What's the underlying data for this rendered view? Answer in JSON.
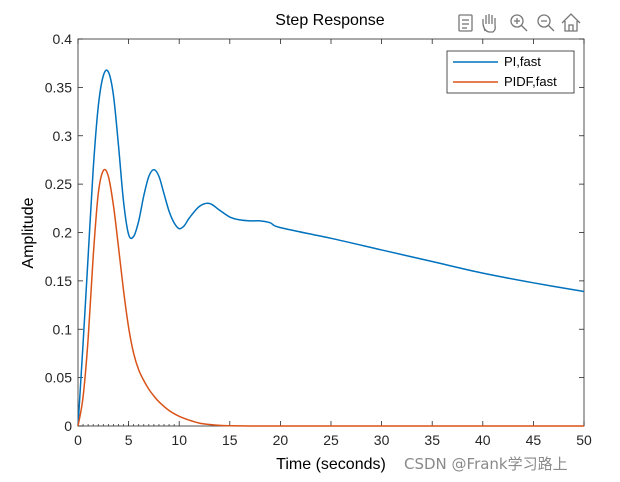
{
  "chart_data": {
    "type": "line",
    "title": "Step Response",
    "xlabel": "Time (seconds)",
    "ylabel": "Amplitude",
    "xlim": [
      0,
      50
    ],
    "ylim": [
      0,
      0.4
    ],
    "xticks": [
      0,
      5,
      10,
      15,
      20,
      25,
      30,
      35,
      40,
      45,
      50
    ],
    "yticks": [
      0,
      0.05,
      0.1,
      0.15,
      0.2,
      0.25,
      0.3,
      0.35,
      0.4
    ],
    "legend_position": "top-right",
    "series": [
      {
        "name": "PI,fast",
        "color": "#0072BD",
        "x": [
          0,
          0.5,
          1,
          1.5,
          2,
          2.5,
          3,
          3.5,
          4,
          4.5,
          5,
          5.5,
          6,
          6.5,
          7,
          7.5,
          8,
          8.5,
          9,
          9.5,
          10,
          10.5,
          11,
          12,
          13,
          14,
          15,
          16,
          17,
          18,
          19,
          20,
          25,
          30,
          35,
          40,
          45,
          50
        ],
        "y": [
          0,
          0.085,
          0.175,
          0.265,
          0.33,
          0.362,
          0.366,
          0.342,
          0.29,
          0.232,
          0.198,
          0.196,
          0.212,
          0.238,
          0.258,
          0.265,
          0.258,
          0.24,
          0.222,
          0.21,
          0.204,
          0.207,
          0.215,
          0.227,
          0.23,
          0.223,
          0.216,
          0.213,
          0.212,
          0.212,
          0.21,
          0.205,
          0.194,
          0.182,
          0.17,
          0.158,
          0.148,
          0.139
        ]
      },
      {
        "name": "PIDF,fast",
        "color": "#D95319",
        "x": [
          0,
          0.5,
          1,
          1.5,
          2,
          2.5,
          3,
          3.5,
          4,
          4.5,
          5,
          5.5,
          6,
          6.5,
          7,
          7.5,
          8,
          9,
          10,
          11,
          12,
          13,
          14,
          15,
          17,
          20,
          30,
          40,
          50
        ],
        "y": [
          0,
          0.03,
          0.09,
          0.175,
          0.24,
          0.264,
          0.258,
          0.228,
          0.185,
          0.14,
          0.102,
          0.075,
          0.058,
          0.047,
          0.038,
          0.031,
          0.025,
          0.016,
          0.01,
          0.006,
          0.003,
          0.0015,
          0.0006,
          0.0002,
          0.0,
          0.0,
          0.0,
          0.0,
          0.0
        ]
      }
    ]
  },
  "toolbar": {
    "icons": [
      "export-icon",
      "pan-hand-icon",
      "zoom-in-icon",
      "zoom-out-icon",
      "home-icon"
    ]
  },
  "watermark": "CSDN @Frank学习路上"
}
